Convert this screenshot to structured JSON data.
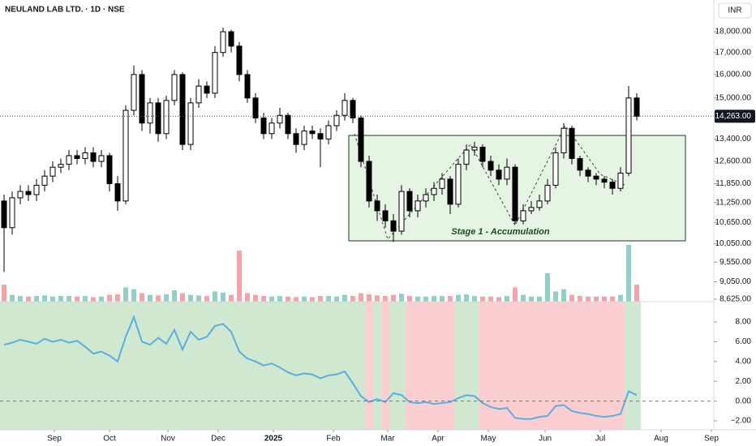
{
  "chart_data": {
    "type": "candlestick",
    "title": "NEULAND LAB LTD. · 1D · NSE",
    "currency": "INR",
    "annotation": "Stage 1 - Accumulation",
    "log_scale": true,
    "categories": [
      null,
      null,
      null,
      null,
      null,
      null,
      null,
      null,
      null,
      null,
      null,
      null,
      null,
      null,
      null,
      null,
      null,
      null,
      null,
      null,
      null,
      null,
      null,
      null,
      null,
      null,
      null,
      null,
      null,
      null,
      null,
      null,
      null,
      null,
      null,
      null,
      null,
      null,
      null,
      null,
      null,
      null,
      null,
      null,
      null,
      null,
      null,
      null,
      null,
      null,
      null,
      null,
      null,
      null,
      null,
      null,
      null,
      null,
      null,
      null,
      null,
      null,
      null,
      null,
      null,
      null,
      null,
      null,
      null,
      null,
      null,
      null,
      null,
      null,
      null,
      null,
      null,
      null,
      null
    ],
    "candles": [
      [
        11300,
        11500,
        9300,
        10500
      ],
      [
        10500,
        11600,
        10300,
        11400
      ],
      [
        11400,
        11800,
        11200,
        11600
      ],
      [
        11600,
        11800,
        11300,
        11500
      ],
      [
        11500,
        12000,
        11300,
        11800
      ],
      [
        11800,
        12300,
        11600,
        12100
      ],
      [
        12100,
        12600,
        11900,
        12400
      ],
      [
        12400,
        12700,
        12200,
        12500
      ],
      [
        12500,
        13000,
        12300,
        12800
      ],
      [
        12800,
        13000,
        12500,
        12700
      ],
      [
        12700,
        13100,
        12500,
        12900
      ],
      [
        12900,
        13100,
        12400,
        12600
      ],
      [
        12600,
        13000,
        12400,
        12800
      ],
      [
        12800,
        12900,
        11600,
        11850
      ],
      [
        11850,
        12100,
        11000,
        11300
      ],
      [
        11300,
        14700,
        11200,
        14500
      ],
      [
        14500,
        16400,
        14300,
        16000
      ],
      [
        16000,
        16200,
        13700,
        14000
      ],
      [
        14000,
        15000,
        13600,
        14800
      ],
      [
        14800,
        15000,
        13300,
        13600
      ],
      [
        13600,
        15100,
        13400,
        14900
      ],
      [
        14900,
        16200,
        14700,
        16000
      ],
      [
        16000,
        16100,
        13000,
        13200
      ],
      [
        13200,
        15000,
        13000,
        14800
      ],
      [
        14800,
        15800,
        14600,
        15500
      ],
      [
        15500,
        15700,
        15000,
        15200
      ],
      [
        15200,
        17300,
        15000,
        17000
      ],
      [
        17000,
        18200,
        16800,
        18000
      ],
      [
        18000,
        18100,
        17000,
        17300
      ],
      [
        17300,
        17500,
        15700,
        16000
      ],
      [
        16000,
        16200,
        14800,
        15000
      ],
      [
        15000,
        15200,
        14000,
        14200
      ],
      [
        14200,
        14400,
        13400,
        13600
      ],
      [
        13600,
        14200,
        13400,
        14000
      ],
      [
        14000,
        14600,
        13800,
        14300
      ],
      [
        14300,
        14400,
        13400,
        13600
      ],
      [
        13600,
        13800,
        12900,
        13200
      ],
      [
        13200,
        13900,
        13000,
        13700
      ],
      [
        13700,
        13900,
        13400,
        13600
      ],
      [
        13600,
        13800,
        12400,
        13400
      ],
      [
        13400,
        14100,
        13200,
        13900
      ],
      [
        13900,
        14500,
        13700,
        14300
      ],
      [
        14300,
        15200,
        14100,
        14900
      ],
      [
        14900,
        15000,
        14000,
        14200
      ],
      [
        14200,
        14300,
        12400,
        12600
      ],
      [
        12600,
        12800,
        11100,
        11300
      ],
      [
        11300,
        11500,
        10700,
        11000
      ],
      [
        11000,
        11200,
        10500,
        10700
      ],
      [
        10700,
        10900,
        10100,
        10400
      ],
      [
        10400,
        11800,
        10300,
        11600
      ],
      [
        11600,
        11700,
        10800,
        11000
      ],
      [
        11000,
        11500,
        10800,
        11300
      ],
      [
        11300,
        11700,
        11100,
        11500
      ],
      [
        11500,
        11900,
        11300,
        11700
      ],
      [
        11700,
        12200,
        11500,
        12000
      ],
      [
        12000,
        12100,
        10900,
        11200
      ],
      [
        11200,
        12700,
        11100,
        12500
      ],
      [
        12500,
        13200,
        12300,
        13000
      ],
      [
        13000,
        13300,
        12800,
        13100
      ],
      [
        13100,
        13200,
        12400,
        12600
      ],
      [
        12600,
        12800,
        12100,
        12300
      ],
      [
        12300,
        12500,
        11800,
        12000
      ],
      [
        12000,
        12700,
        11800,
        12400
      ],
      [
        12400,
        12500,
        10600,
        10700
      ],
      [
        10700,
        11200,
        10600,
        11000
      ],
      [
        11000,
        11300,
        10900,
        11100
      ],
      [
        11100,
        11500,
        11000,
        11300
      ],
      [
        11300,
        12000,
        11200,
        11800
      ],
      [
        11800,
        13100,
        11700,
        12900
      ],
      [
        12900,
        14000,
        12700,
        13800
      ],
      [
        13800,
        13900,
        12500,
        12700
      ],
      [
        12700,
        12800,
        12100,
        12300
      ],
      [
        12300,
        12400,
        11900,
        12100
      ],
      [
        12100,
        12200,
        11800,
        12000
      ],
      [
        12000,
        12100,
        11700,
        11900
      ],
      [
        11900,
        12000,
        11500,
        11700
      ],
      [
        11700,
        12400,
        11600,
        12200
      ],
      [
        12200,
        15500,
        12100,
        15000
      ],
      [
        15000,
        15200,
        14100,
        14263
      ]
    ],
    "volume": [
      3,
      1.2,
      1,
      0.9,
      1,
      1.1,
      0.9,
      1,
      1,
      0.9,
      1,
      0.8,
      0.9,
      1.2,
      1.3,
      2.5,
      2.2,
      1.5,
      1.2,
      1.1,
      1.3,
      2,
      1.5,
      1.2,
      1.1,
      1,
      1.8,
      1.6,
      1.2,
      9,
      1.5,
      1.2,
      1,
      0.9,
      1,
      0.9,
      0.8,
      0.9,
      0.8,
      1,
      1,
      0.9,
      1.2,
      1,
      1.5,
      1.3,
      1.1,
      1,
      1.2,
      1.4,
      1,
      0.9,
      0.9,
      1,
      1,
      1,
      1.2,
      1.3,
      1,
      0.9,
      0.9,
      0.8,
      1,
      2.5,
      1.2,
      0.9,
      0.9,
      5,
      1.8,
      2.2,
      1.2,
      1,
      0.9,
      0.9,
      0.9,
      0.9,
      1.2,
      10,
      3
    ],
    "up_color": "#ffffff",
    "down_color": "#000000",
    "volume_up_color": "#8fd1c4",
    "volume_down_color": "#f4a3a9",
    "ylim": [
      8567,
      19640
    ],
    "yticks": [
      {
        "value": 18000,
        "label": "18,000.00"
      },
      {
        "value": 17000,
        "label": "17,000.00"
      },
      {
        "value": 16000,
        "label": "16,000.00"
      },
      {
        "value": 15000,
        "label": "15,000.00"
      },
      {
        "value": 13400,
        "label": "13,400.00"
      },
      {
        "value": 12600,
        "label": "12,600.00"
      },
      {
        "value": 11850,
        "label": "11,850.00"
      },
      {
        "value": 11250,
        "label": "11,250.00"
      },
      {
        "value": 10650,
        "label": "10,650.00"
      },
      {
        "value": 10050,
        "label": "10,050.00"
      },
      {
        "value": 9550,
        "label": "9,550.00"
      },
      {
        "value": 9050,
        "label": "9,050.00"
      },
      {
        "value": 8625,
        "label": "8,625.00"
      }
    ],
    "last_price": {
      "value": 14263,
      "label": "14,263.00"
    },
    "xlim": [
      -0.5,
      87.5
    ],
    "xticks": [
      {
        "value": 6.2,
        "label": "Sep"
      },
      {
        "value": 13,
        "label": "Oct"
      },
      {
        "value": 20.2,
        "label": "Nov"
      },
      {
        "value": 26.4,
        "label": "Dec"
      },
      {
        "value": 33.2,
        "label": "2025"
      },
      {
        "value": 40.6,
        "label": "Feb"
      },
      {
        "value": 47.3,
        "label": "Mar"
      },
      {
        "value": 53.5,
        "label": "Apr"
      },
      {
        "value": 59.7,
        "label": "May"
      },
      {
        "value": 66.7,
        "label": "Jun"
      },
      {
        "value": 73.5,
        "label": "Jul"
      },
      {
        "value": 81,
        "label": "Aug"
      },
      {
        "value": 87.2,
        "label": "Sep"
      }
    ],
    "indicator": {
      "color": "#5aaee0",
      "values": [
        5.7,
        5.9,
        6.2,
        6.0,
        5.8,
        6.3,
        6.0,
        6.2,
        5.9,
        6.1,
        5.5,
        4.8,
        5.0,
        4.6,
        4.0,
        6.5,
        8.5,
        6.0,
        5.7,
        6.4,
        5.8,
        7.2,
        5.2,
        7.0,
        6.2,
        6.5,
        7.6,
        7.8,
        7.0,
        5.0,
        4.3,
        4.0,
        3.6,
        3.8,
        3.4,
        2.9,
        2.6,
        2.8,
        2.7,
        2.3,
        2.6,
        2.7,
        3.0,
        1.8,
        0.5,
        -0.1,
        0.2,
        -0.1,
        0.8,
        0.6,
        -0.1,
        -0.2,
        -0.1,
        -0.3,
        -0.2,
        -0.1,
        0.3,
        0.6,
        0.5,
        -0.2,
        -0.6,
        -0.8,
        -0.7,
        -1.7,
        -1.8,
        -1.8,
        -1.6,
        -1.5,
        -0.5,
        -0.4,
        -1.0,
        -1.2,
        -1.3,
        -1.5,
        -1.6,
        -1.5,
        -1.3,
        1.0,
        0.6
      ],
      "zero_line": 0,
      "up_zone_color": "#cfe8cf",
      "down_zone_color": "#fbcfd1",
      "ylim": [
        -2.9,
        10.05
      ],
      "yticks": [
        {
          "value": 8,
          "label": "8.00"
        },
        {
          "value": 6,
          "label": "6.00"
        },
        {
          "value": 4,
          "label": "4.00"
        },
        {
          "value": 2,
          "label": "2.00"
        },
        {
          "value": 0,
          "label": "0.00"
        },
        {
          "value": -2,
          "label": "−2.00"
        }
      ]
    }
  }
}
